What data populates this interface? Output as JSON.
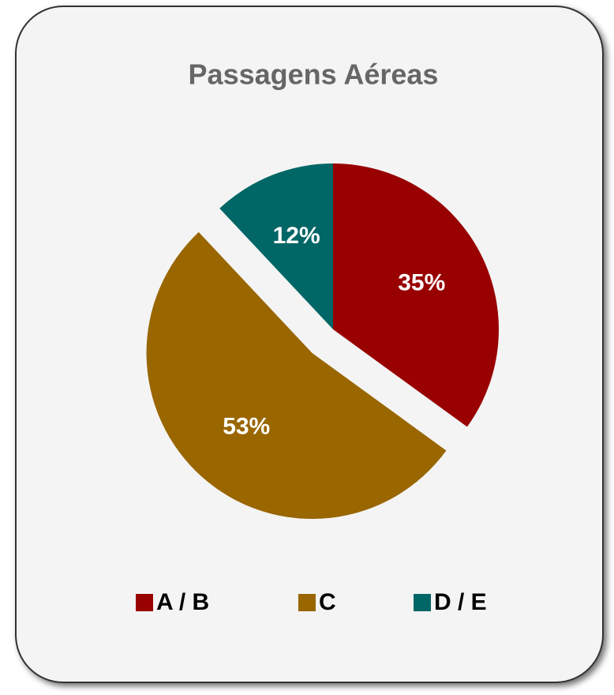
{
  "chart_data": {
    "type": "pie",
    "title": "Passagens Aéreas",
    "categories": [
      "A / B",
      "C",
      "D / E"
    ],
    "values": [
      35,
      53,
      12
    ],
    "value_labels": [
      "35%",
      "53%",
      "12%"
    ],
    "colors": [
      "#990000",
      "#996600",
      "#006666"
    ],
    "legend": "bottom"
  }
}
